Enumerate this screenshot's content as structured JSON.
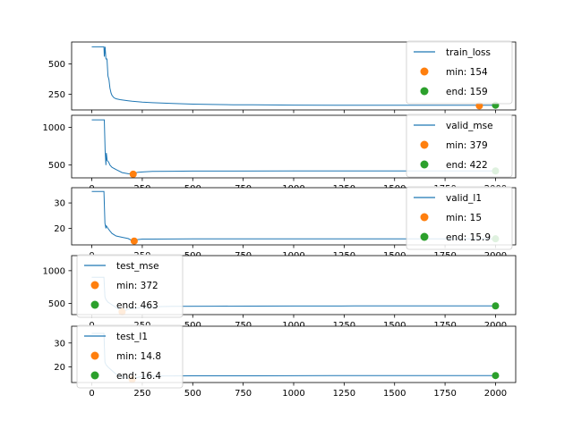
{
  "colors": {
    "line": "#1f77b4",
    "min": "#ff7f0e",
    "end": "#2ca02c"
  },
  "chart_data": [
    {
      "type": "line",
      "xlim": [
        -100,
        2100
      ],
      "ylim": [
        120,
        680
      ],
      "yticks": [
        250,
        500
      ],
      "xticks": [
        0,
        250,
        500,
        750,
        1000,
        1250,
        1500,
        1750,
        2000
      ],
      "legend": "top-right",
      "series": [
        {
          "name": "train_loss",
          "x": [
            0,
            60,
            62,
            66,
            70,
            75,
            80,
            85,
            90,
            95,
            100,
            110,
            120,
            140,
            160,
            180,
            200,
            250,
            300,
            400,
            500,
            600,
            700,
            800,
            1000,
            1200,
            1400,
            1600,
            1800,
            2000
          ],
          "y": [
            640,
            640,
            560,
            640,
            540,
            540,
            400,
            370,
            300,
            260,
            240,
            220,
            212,
            205,
            200,
            196,
            192,
            185,
            180,
            173,
            168,
            165,
            163,
            162,
            160,
            159,
            159,
            158,
            158,
            159
          ]
        }
      ],
      "min": {
        "x": 1920,
        "y": 154,
        "label": "min: 154"
      },
      "end": {
        "x": 2000,
        "y": 159,
        "label": "end: 159"
      }
    },
    {
      "type": "line",
      "xlim": [
        -100,
        2100
      ],
      "ylim": [
        330,
        1160
      ],
      "yticks": [
        500,
        1000
      ],
      "xticks": [
        0,
        250,
        500,
        750,
        1000,
        1250,
        1500,
        1750,
        2000
      ],
      "legend": "top-right",
      "series": [
        {
          "name": "valid_mse",
          "x": [
            0,
            60,
            62,
            66,
            70,
            72,
            76,
            80,
            85,
            90,
            100,
            120,
            150,
            180,
            200,
            215,
            230,
            260,
            300,
            400,
            500,
            700,
            1000,
            1300,
            1600,
            1800,
            2000
          ],
          "y": [
            1100,
            1100,
            1100,
            700,
            500,
            660,
            560,
            550,
            530,
            500,
            470,
            440,
            400,
            385,
            379,
            395,
            405,
            410,
            415,
            418,
            420,
            420,
            421,
            421,
            421,
            422,
            422
          ]
        }
      ],
      "min": {
        "x": 205,
        "y": 379,
        "label": "min: 379"
      },
      "end": {
        "x": 2000,
        "y": 422,
        "label": "end: 422"
      }
    },
    {
      "type": "line",
      "xlim": [
        -100,
        2100
      ],
      "ylim": [
        13.5,
        36
      ],
      "yticks": [
        20,
        30
      ],
      "xticks": [
        0,
        250,
        500,
        750,
        1000,
        1250,
        1500,
        1750,
        2000
      ],
      "legend": "top-right",
      "series": [
        {
          "name": "valid_l1",
          "x": [
            0,
            60,
            65,
            70,
            72,
            76,
            80,
            90,
            100,
            120,
            150,
            180,
            200,
            220,
            250,
            300,
            500,
            1000,
            1500,
            2000
          ],
          "y": [
            34.5,
            34.5,
            22,
            20,
            21,
            20.5,
            20,
            19,
            18,
            17,
            16.5,
            16,
            15.2,
            15.5,
            15.8,
            15.8,
            15.9,
            15.9,
            15.9,
            15.9
          ]
        }
      ],
      "min": {
        "x": 210,
        "y": 15,
        "label": "min: 15"
      },
      "end": {
        "x": 2000,
        "y": 15.9,
        "label": "end: 15.9"
      }
    },
    {
      "type": "line",
      "xlim": [
        -100,
        2100
      ],
      "ylim": [
        330,
        1230
      ],
      "yticks": [
        500,
        1000
      ],
      "xticks": [
        0,
        250,
        500,
        750,
        1000,
        1250,
        1500,
        1750,
        2000
      ],
      "legend": "top-left",
      "series": [
        {
          "name": "test_mse",
          "x": [
            0,
            60,
            65,
            70,
            80,
            100,
            120,
            140,
            150,
            160,
            180,
            200,
            250,
            300,
            400,
            600,
            800,
            1000,
            1300,
            1600,
            2000
          ],
          "y": [
            900,
            900,
            600,
            560,
            520,
            480,
            440,
            400,
            372,
            390,
            410,
            420,
            440,
            450,
            455,
            458,
            460,
            461,
            462,
            462,
            463
          ]
        }
      ],
      "min": {
        "x": 150,
        "y": 372,
        "label": "min: 372"
      },
      "end": {
        "x": 2000,
        "y": 463,
        "label": "end: 463"
      }
    },
    {
      "type": "line",
      "xlim": [
        -100,
        2100
      ],
      "ylim": [
        13.5,
        37
      ],
      "yticks": [
        20,
        30
      ],
      "xticks": [
        0,
        250,
        500,
        750,
        1000,
        1250,
        1500,
        1750,
        2000
      ],
      "legend": "top-left",
      "series": [
        {
          "name": "test_l1",
          "x": [
            0,
            60,
            65,
            70,
            80,
            100,
            120,
            150,
            180,
            200,
            220,
            250,
            300,
            500,
            800,
            1200,
            1600,
            2000
          ],
          "y": [
            34,
            34,
            22,
            21,
            20,
            18.5,
            17,
            16,
            15.2,
            14.8,
            15.5,
            16,
            16.2,
            16.3,
            16.3,
            16.4,
            16.4,
            16.4
          ]
        }
      ],
      "min": {
        "x": 200,
        "y": 14.8,
        "label": "min: 14.8"
      },
      "end": {
        "x": 2000,
        "y": 16.4,
        "label": "end: 16.4"
      }
    }
  ]
}
